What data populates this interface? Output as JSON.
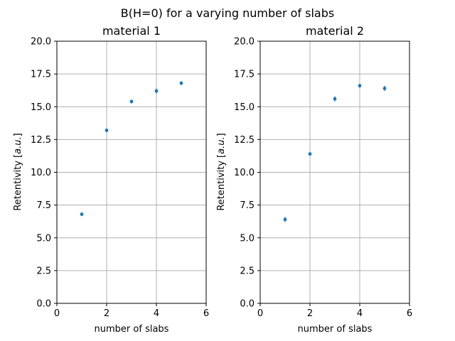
{
  "chart_data": {
    "suptitle": "B(H=0) for a varying number of slabs",
    "type": "scatter",
    "panels": [
      {
        "title": "material 1",
        "xlabel": "number of slabs",
        "ylabel_main": "Retentivity [",
        "ylabel_unit": "a.u.",
        "ylabel_end": "]",
        "xlim": [
          0,
          6
        ],
        "ylim": [
          0,
          20
        ],
        "xticks": [
          "0",
          "2",
          "4",
          "6"
        ],
        "yticks": [
          "0.0",
          "2.5",
          "5.0",
          "7.5",
          "10.0",
          "12.5",
          "15.0",
          "17.5",
          "20.0"
        ],
        "grid": true,
        "x": [
          1,
          2,
          3,
          4,
          5
        ],
        "y": [
          6.8,
          13.2,
          15.4,
          16.2,
          16.8
        ],
        "yerr": [
          0.15,
          0.15,
          0.15,
          0.2,
          0.15
        ]
      },
      {
        "title": "material 2",
        "xlabel": "number of slabs",
        "ylabel_main": "Retentivity [",
        "ylabel_unit": "a.u.",
        "ylabel_end": "]",
        "xlim": [
          0,
          6
        ],
        "ylim": [
          0,
          20
        ],
        "xticks": [
          "0",
          "2",
          "4",
          "6"
        ],
        "yticks": [
          "0.0",
          "2.5",
          "5.0",
          "7.5",
          "10.0",
          "12.5",
          "15.0",
          "17.5",
          "20.0"
        ],
        "grid": true,
        "x": [
          1,
          2,
          3,
          4,
          5
        ],
        "y": [
          6.4,
          11.4,
          15.6,
          16.6,
          16.4
        ],
        "yerr": [
          0.2,
          0.15,
          0.2,
          0.15,
          0.2
        ]
      }
    ],
    "series_color": "#1f77b4"
  }
}
